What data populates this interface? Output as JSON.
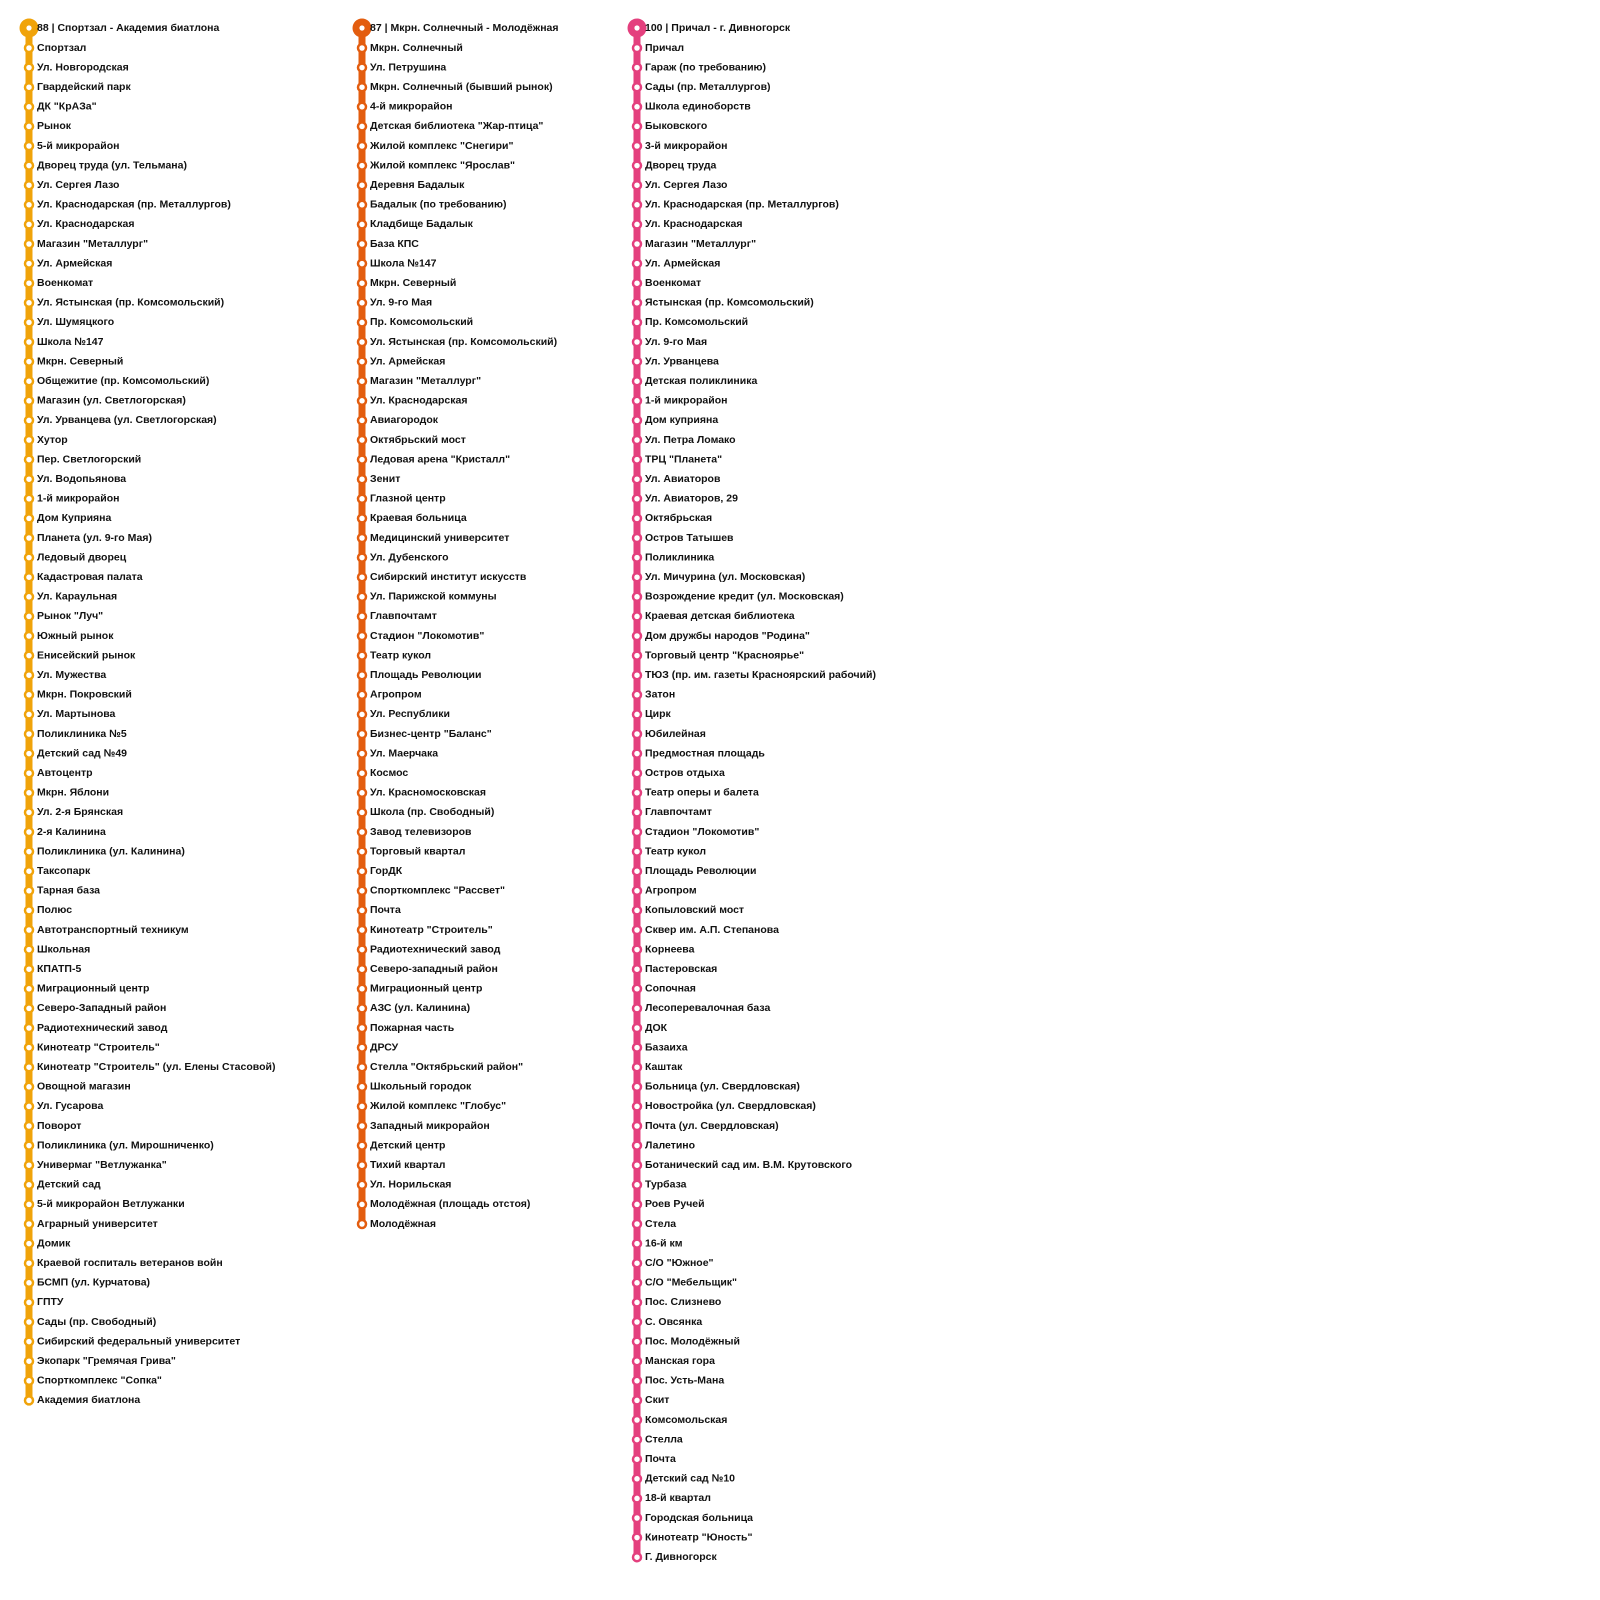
{
  "routes": [
    {
      "header": "88 | Спортзал - Академия биатлона",
      "color": "#f0a30a",
      "stops": [
        "Спортзал",
        "Ул. Новгородская",
        "Гвардейский парк",
        "ДК \"КрАЗа\"",
        "Рынок",
        "5-й микрорайон",
        "Дворец труда (ул. Тельмана)",
        "Ул. Сергея Лазо",
        "Ул. Краснодарская (пр. Металлургов)",
        "Ул. Краснодарская",
        "Магазин \"Металлург\"",
        "Ул. Армейская",
        "Военкомат",
        "Ул. Ястынская (пр. Комсомольский)",
        "Ул. Шумяцкого",
        "Школа №147",
        "Мкрн. Северный",
        "Общежитие (пр. Комсомольский)",
        "Магазин (ул. Светлогорская)",
        "Ул. Урванцева (ул. Светлогорская)",
        "Хутор",
        "Пер. Светлогорский",
        "Ул. Водопьянова",
        "1-й микрорайон",
        "Дом Куприяна",
        "Планета (ул. 9-го Мая)",
        "Ледовый дворец",
        "Кадастровая палата",
        "Ул. Караульная",
        "Рынок \"Луч\"",
        "Южный рынок",
        "Енисейский рынок",
        "Ул. Мужества",
        "Мкрн. Покровский",
        "Ул. Мартынова",
        "Поликлиника №5",
        "Детский сад №49",
        "Автоцентр",
        "Мкрн. Яблони",
        "Ул. 2-я Брянская",
        "2-я Калинина",
        "Поликлиника (ул. Калинина)",
        "Таксопарк",
        "Тарная база",
        "Полюс",
        "Автотранспортный техникум",
        "Школьная",
        "КПАТП-5",
        "Миграционный центр",
        "Северо-Западный район",
        "Радиотехнический завод",
        "Кинотеатр \"Строитель\"",
        "Кинотеатр \"Строитель\" (ул. Елены Стасовой)",
        "Овощной магазин",
        "Ул. Гусарова",
        "Поворот",
        "Поликлиника (ул. Мирошниченко)",
        "Универмаг \"Ветлужанка\"",
        "Детский сад",
        "5-й микрорайон Ветлужанки",
        "Аграрный университет",
        "Домик",
        "Краевой госпиталь ветеранов войн",
        "БСМП (ул. Курчатова)",
        "ГПТУ",
        "Сады (пр. Свободный)",
        "Сибирский федеральный университет",
        "Экопарк \"Гремячая Грива\"",
        "Спорткомплекс \"Сопка\"",
        "Академия биатлона"
      ]
    },
    {
      "header": "87 | Мкрн. Солнечный - Молодёжная",
      "color": "#e35d0f",
      "stops": [
        "Мкрн. Солнечный",
        "Ул. Петрушина",
        "Мкрн. Солнечный (бывший рынок)",
        "4-й микрорайон",
        "Детская библиотека \"Жар-птица\"",
        "Жилой комплекс \"Снегири\"",
        "Жилой комплекс \"Ярослав\"",
        "Деревня Бадалык",
        "Бадалык (по требованию)",
        "Кладбище Бадалык",
        "База КПС",
        "Школа №147",
        "Мкрн. Северный",
        "Ул. 9-го Мая",
        "Пр. Комсомольский",
        "Ул. Ястынская (пр. Комсомольский)",
        "Ул. Армейская",
        "Магазин \"Металлург\"",
        "Ул. Краснодарская",
        "Авиагородок",
        "Октябрьский мост",
        "Ледовая арена \"Кристалл\"",
        "Зенит",
        "Глазной центр",
        "Краевая больница",
        "Медицинский университет",
        "Ул. Дубенского",
        "Сибирский институт искусств",
        "Ул. Парижской коммуны",
        "Главпочтамт",
        "Стадион \"Локомотив\"",
        "Театр кукол",
        "Площадь Революции",
        "Агропром",
        "Ул. Республики",
        "Бизнес-центр \"Баланс\"",
        "Ул. Маерчака",
        "Космос",
        "Ул. Красномосковская",
        "Школа (пр. Свободный)",
        "Завод телевизоров",
        "Торговый квартал",
        "ГорДК",
        "Спорткомплекс \"Рассвет\"",
        "Почта",
        "Кинотеатр \"Строитель\"",
        "Радиотехнический завод",
        "Северо-западный район",
        "Миграционный центр",
        "АЗС (ул. Калинина)",
        "Пожарная часть",
        "ДРСУ",
        "Стелла \"Октябрьский район\"",
        "Школьный городок",
        "Жилой комплекс \"Глобус\"",
        "Западный микрорайон",
        "Детский центр",
        "Тихий квартал",
        "Ул. Норильская",
        "Молодёжная (площадь отстоя)",
        "Молодёжная"
      ]
    },
    {
      "header": "100 | Причал - г. Дивногорск",
      "color": "#e4407e",
      "stops": [
        "Причал",
        "Гараж (по требованию)",
        "Сады (пр. Металлургов)",
        "Школа единоборств",
        "Быковского",
        "3-й микрорайон",
        "Дворец труда",
        "Ул. Сергея Лазо",
        "Ул. Краснодарская (пр. Металлургов)",
        "Ул. Краснодарская",
        "Магазин \"Металлург\"",
        "Ул. Армейская",
        "Военкомат",
        "Ястынская (пр. Комсомольский)",
        "Пр. Комсомольский",
        "Ул. 9-го Мая",
        "Ул. Урванцева",
        "Детская поликлиника",
        "1-й микрорайон",
        "Дом куприяна",
        "Ул. Петра Ломако",
        "ТРЦ \"Планета\"",
        "Ул. Авиаторов",
        "Ул. Авиаторов, 29",
        "Октябрьская",
        "Остров Татышев",
        "Поликлиника",
        "Ул. Мичурина (ул. Московская)",
        "Возрождение кредит (ул. Московская)",
        "Краевая детская библиотека",
        "Дом дружбы народов \"Родина\"",
        "Торговый центр \"Красноярье\"",
        "ТЮЗ (пр. им. газеты Красноярский рабочий)",
        "Затон",
        "Цирк",
        "Юбилейная",
        "Предмостная площадь",
        "Остров отдыха",
        "Театр оперы и балета",
        "Главпочтамт",
        "Стадион \"Локомотив\"",
        "Театр кукол",
        "Площадь Революции",
        "Агропром",
        "Копыловский мост",
        "Сквер им. А.П. Степанова",
        "Корнеева",
        "Пастеровская",
        "Сопочная",
        "Лесоперевалочная база",
        "ДОК",
        "Базаиха",
        "Каштак",
        "Больница (ул. Свердловская)",
        "Новостройка (ул. Свердловская)",
        "Почта (ул. Свердловская)",
        "Лалетино",
        "Ботанический сад им. В.М. Крутовского",
        "Турбаза",
        "Роев Ручей",
        "Стела",
        "16-й км",
        "С/О \"Южное\"",
        "С/О \"Мебельщик\"",
        "Пос. Слизнево",
        "С. Овсянка",
        "Пос. Молодёжный",
        "Манская гора",
        "Пос. Усть-Мана",
        "Скит",
        "Комсомольская",
        "Стелла",
        "Почта",
        "Детский сад №10",
        "18-й квартал",
        "Городская больница",
        "Кинотеатр \"Юность\"",
        "Г. Дивногорск"
      ]
    }
  ]
}
